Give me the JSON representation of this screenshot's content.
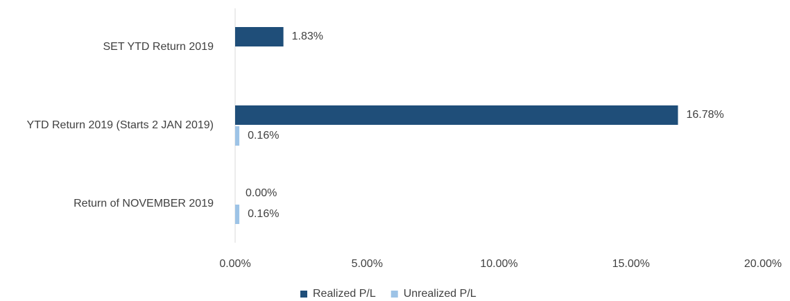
{
  "chart_data": {
    "type": "hbar",
    "categories": [
      "SET YTD Return 2019",
      "YTD Return 2019 (Starts 2 JAN 2019)",
      "Return of NOVEMBER 2019"
    ],
    "series": [
      {
        "name": "Realized P/L",
        "color": "#1f4e79",
        "values": [
          1.83,
          16.78,
          0
        ],
        "value_labels": [
          "1.83%",
          "16.78%",
          "0.00%"
        ]
      },
      {
        "name": "Unrealized P/L",
        "color": "#9dc3e6",
        "values": [
          null,
          0.16,
          0.16
        ],
        "value_labels": [
          null,
          "0.16%",
          "0.16%"
        ]
      }
    ],
    "xlim": [
      0,
      20
    ],
    "xticks": [
      {
        "value": 0,
        "label": "0.00%"
      },
      {
        "value": 5,
        "label": "5.00%"
      },
      {
        "value": 10,
        "label": "10.00%"
      },
      {
        "value": 15,
        "label": "15.00%"
      },
      {
        "value": 20,
        "label": "20.00%"
      }
    ],
    "legend": "bottom"
  }
}
